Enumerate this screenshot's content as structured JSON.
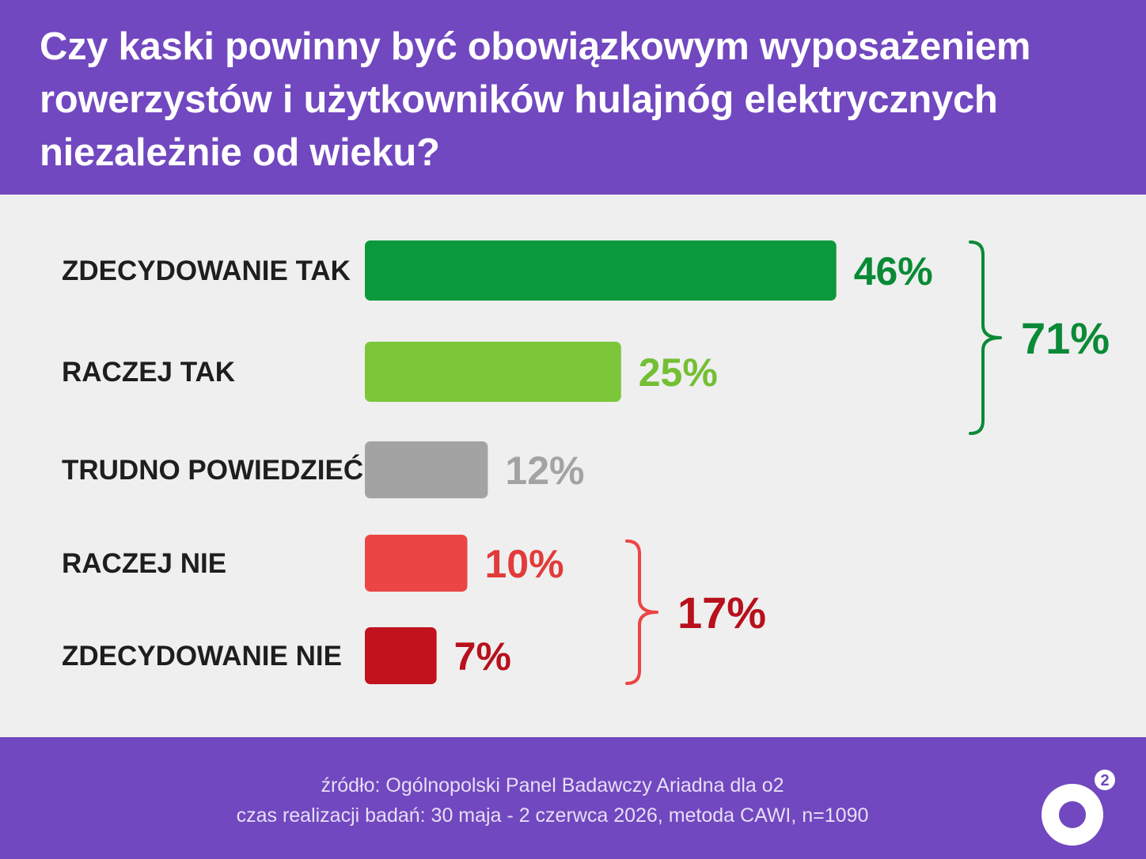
{
  "title": "Czy kaski powinny być obowiązkowym wyposażeniem rowerzystów i użytkowników hulajnóg elektrycznych niezależnie od wieku?",
  "chart_data": {
    "type": "bar",
    "orientation": "horizontal",
    "categories": [
      "ZDECYDOWANIE TAK",
      "RACZEJ TAK",
      "TRUDNO POWIEDZIEĆ",
      "RACZEJ NIE",
      "ZDECYDOWANIE NIE"
    ],
    "values": [
      46,
      25,
      12,
      10,
      7
    ],
    "value_labels": [
      "46%",
      "25%",
      "12%",
      "10%",
      "7%"
    ],
    "colors": [
      "#0a9a3c",
      "#7cc63a",
      "#a3a3a3",
      "#ec4545",
      "#c2121e"
    ],
    "value_label_colors": [
      "#0a8a36",
      "#74bf34",
      "#a3a3a3",
      "#e23b3b",
      "#b8101c"
    ],
    "groups": [
      {
        "label": "71%",
        "from": 0,
        "to": 1,
        "color": "#0a8a36"
      },
      {
        "label": "17%",
        "from": 3,
        "to": 4,
        "color": "#b8101c",
        "bracket_color": "#ec4545"
      }
    ],
    "unit": "%",
    "grid": false,
    "legend": "none"
  },
  "footer": {
    "source_line1": "źródło: Ogólnopolski Panel Badawczy Ariadna dla o2",
    "source_line2": "czas realizacji badań: 30 maja - 2 czerwca 2026, metoda CAWI, n=1090"
  },
  "logo": {
    "icon": "o2-logo-icon",
    "text": "o2"
  }
}
